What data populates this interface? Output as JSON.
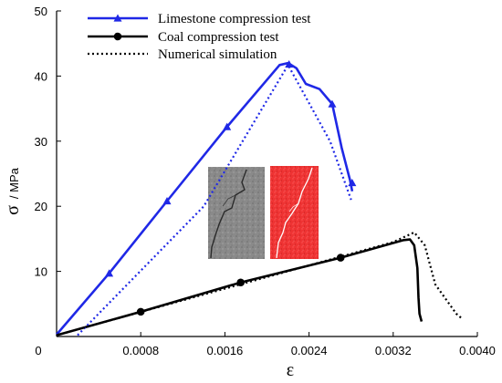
{
  "chart_data": {
    "type": "line",
    "xlabel": "ε",
    "ylabel_symbol": "σ",
    "ylabel_unit": "/ MPa",
    "xlim": [
      0,
      0.004
    ],
    "ylim": [
      0,
      50
    ],
    "x_ticks": [
      0,
      0.0008,
      0.0016,
      0.0024,
      0.0032,
      0.004
    ],
    "x_tick_labels": [
      "0",
      "0.0008",
      "0.0016",
      "0.0024",
      "0.0032",
      "0.0040"
    ],
    "y_ticks": [
      10,
      20,
      30,
      40,
      50
    ],
    "y_tick_labels": [
      "10",
      "20",
      "30",
      "40",
      "50"
    ],
    "grid": false,
    "legend_position": "top-left",
    "series": [
      {
        "name": "Limestone compression test",
        "color": "#1f28e6",
        "style": "solid",
        "marker": "triangle",
        "points": [
          [
            0,
            0.3
          ],
          [
            0.0005,
            9.7
          ],
          [
            0.00105,
            20.8
          ],
          [
            0.00162,
            32.2
          ],
          [
            0.00212,
            41.7
          ],
          [
            0.0022,
            42.0
          ],
          [
            0.00228,
            41.2
          ],
          [
            0.00237,
            38.8
          ],
          [
            0.0025,
            38.0
          ],
          [
            0.00262,
            35.7
          ],
          [
            0.00271,
            29.0
          ],
          [
            0.00279,
            24.0
          ],
          [
            0.00281,
            22.3
          ]
        ],
        "marker_points": [
          [
            0.0005,
            9.7
          ],
          [
            0.00105,
            20.8
          ],
          [
            0.00162,
            32.2
          ],
          [
            0.00221,
            41.8
          ],
          [
            0.00262,
            35.7
          ],
          [
            0.00281,
            23.6
          ]
        ]
      },
      {
        "name": "Coal compression test",
        "color": "#000000",
        "style": "solid",
        "marker": "circle",
        "points": [
          [
            0,
            0.2
          ],
          [
            0.0008,
            3.8
          ],
          [
            0.00175,
            8.3
          ],
          [
            0.0027,
            12.1
          ],
          [
            0.0033,
            14.8
          ],
          [
            0.00336,
            14.9
          ],
          [
            0.0034,
            14.0
          ],
          [
            0.00343,
            10.5
          ],
          [
            0.00344,
            6.0
          ],
          [
            0.00345,
            3.5
          ],
          [
            0.00347,
            2.3
          ]
        ],
        "marker_points": [
          [
            0.0008,
            3.8
          ],
          [
            0.00175,
            8.3
          ],
          [
            0.0027,
            12.1
          ]
        ]
      },
      {
        "name": "Numerical simulation",
        "color": "#1f28e6",
        "style": "dotted",
        "points": [
          [
            0.0002,
            0.2
          ],
          [
            0.0014,
            20.0
          ],
          [
            0.0022,
            41.7
          ],
          [
            0.0026,
            30.0
          ],
          [
            0.0028,
            21.0
          ]
        ]
      },
      {
        "name": "",
        "color": "#000000",
        "style": "dotted",
        "points": [
          [
            0,
            0.2
          ],
          [
            0.0032,
            14.5
          ],
          [
            0.0034,
            16.0
          ],
          [
            0.0035,
            14.0
          ],
          [
            0.0036,
            8.0
          ],
          [
            0.0038,
            3.5
          ],
          [
            0.00385,
            2.8
          ]
        ]
      }
    ],
    "inset": {
      "description_left": "gray rock specimen with crack",
      "description_right": "red simulated specimen with white crack"
    }
  }
}
